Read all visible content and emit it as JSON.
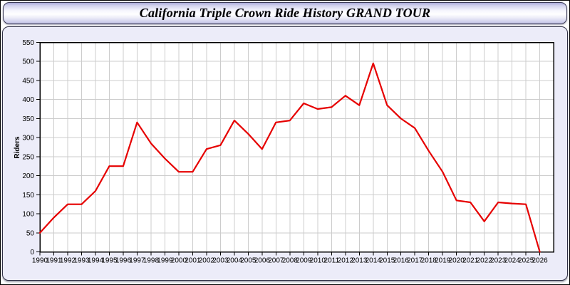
{
  "window": {
    "title": "California Triple Crown Ride History GRAND TOUR"
  },
  "chart_data": {
    "type": "line",
    "title": "California Triple Crown Ride History GRAND TOUR",
    "xlabel": "",
    "ylabel": "Riders",
    "x": [
      1990,
      1991,
      1992,
      1993,
      1994,
      1995,
      1996,
      1997,
      1998,
      1999,
      2000,
      2001,
      2002,
      2003,
      2004,
      2005,
      2006,
      2007,
      2008,
      2009,
      2010,
      2011,
      2012,
      2013,
      2014,
      2015,
      2016,
      2017,
      2018,
      2019,
      2020,
      2021,
      2022,
      2023,
      2024,
      2025,
      2026
    ],
    "series": [
      {
        "name": "Riders",
        "values": [
          50,
          90,
          125,
          125,
          160,
          225,
          225,
          340,
          285,
          245,
          210,
          210,
          270,
          280,
          345,
          310,
          270,
          340,
          345,
          390,
          375,
          380,
          410,
          385,
          495,
          385,
          350,
          325,
          265,
          210,
          135,
          130,
          80,
          130,
          127,
          125,
          0
        ]
      }
    ],
    "ylim": [
      0,
      550
    ],
    "ytick_step": 50,
    "grid": true,
    "legend_position": "none",
    "line_color": "#e60000",
    "grid_color": "#cccccc",
    "axis_color": "#000000",
    "tick_label_color": "#000000",
    "plot_bg": "#ffffff",
    "panel_bg": "#ececf9"
  }
}
